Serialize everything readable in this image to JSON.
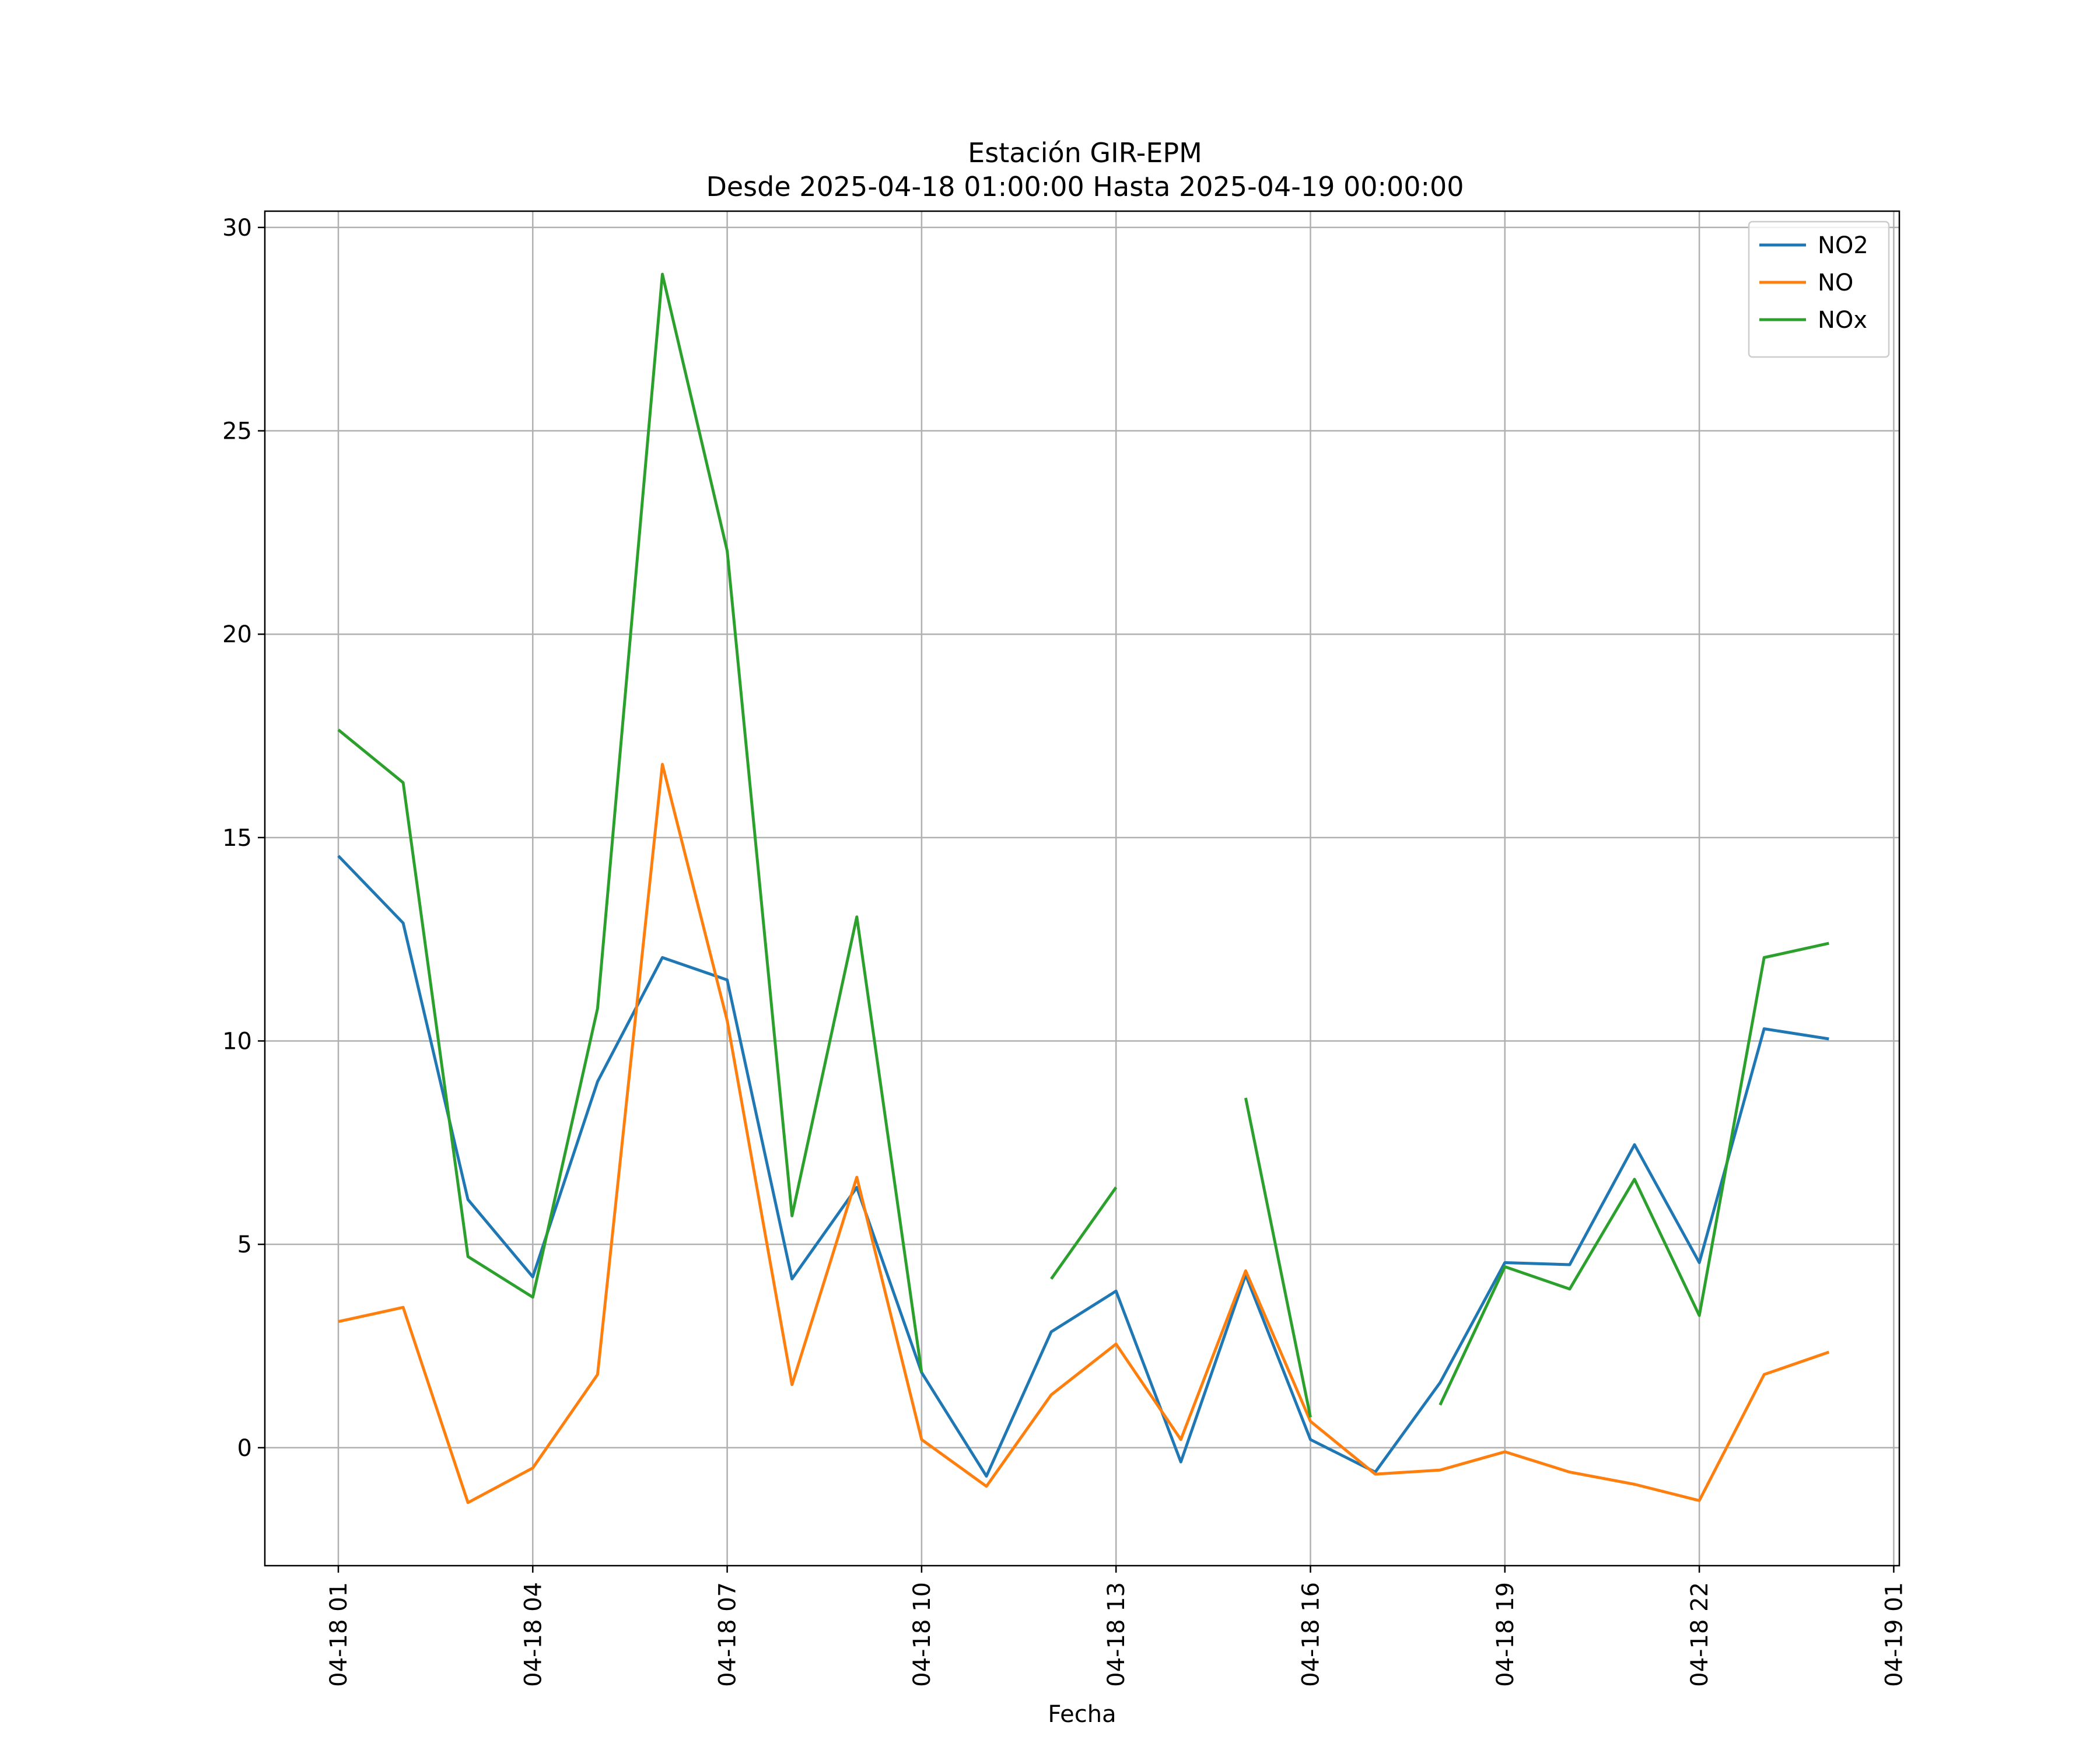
{
  "chart_data": {
    "type": "line",
    "title_line1": "Estación GIR-EPM",
    "title_line2": "Desde 2025-04-18 01:00:00 Hasta 2025-04-19 00:00:00",
    "xlabel": "Fecha",
    "ylabel": "",
    "x": [
      "04-18 01",
      "04-18 02",
      "04-18 03",
      "04-18 04",
      "04-18 05",
      "04-18 06",
      "04-18 07",
      "04-18 08",
      "04-18 09",
      "04-18 10",
      "04-18 11",
      "04-18 12",
      "04-18 13",
      "04-18 14",
      "04-18 15",
      "04-18 16",
      "04-18 17",
      "04-18 18",
      "04-18 19",
      "04-18 20",
      "04-18 21",
      "04-18 22",
      "04-18 23",
      "04-19 00"
    ],
    "x_tick_labels": [
      "04-18 01",
      "04-18 04",
      "04-18 07",
      "04-18 10",
      "04-18 13",
      "04-18 16",
      "04-18 19",
      "04-18 22",
      "04-19 01"
    ],
    "ylim": [
      -2.9,
      30.4
    ],
    "y_ticks": [
      0,
      5,
      10,
      15,
      20,
      25,
      30
    ],
    "grid": true,
    "legend_position": "top-right",
    "series": [
      {
        "name": "NO2",
        "color": "#1f77b4",
        "values": [
          14.55,
          12.9,
          6.1,
          4.2,
          9.0,
          12.05,
          11.5,
          4.15,
          6.4,
          1.85,
          -0.7,
          2.85,
          3.85,
          -0.35,
          4.25,
          0.2,
          -0.6,
          1.6,
          4.55,
          4.5,
          7.45,
          4.55,
          10.3,
          10.05
        ]
      },
      {
        "name": "NO",
        "color": "#ff7f0e",
        "values": [
          3.1,
          3.45,
          -1.35,
          -0.5,
          1.8,
          16.8,
          10.5,
          1.55,
          6.65,
          0.2,
          -0.95,
          1.3,
          2.55,
          0.2,
          4.35,
          0.65,
          -0.65,
          -0.55,
          -0.1,
          -0.6,
          -0.9,
          -1.3,
          1.8,
          2.35
        ]
      },
      {
        "name": "NOx",
        "color": "#2ca02c",
        "values": [
          17.65,
          16.35,
          4.7,
          3.7,
          10.8,
          28.85,
          22.05,
          5.7,
          13.05,
          1.85,
          null,
          4.15,
          6.4,
          null,
          8.6,
          0.75,
          null,
          1.05,
          4.45,
          3.9,
          6.6,
          3.25,
          12.05,
          12.4
        ]
      }
    ]
  }
}
